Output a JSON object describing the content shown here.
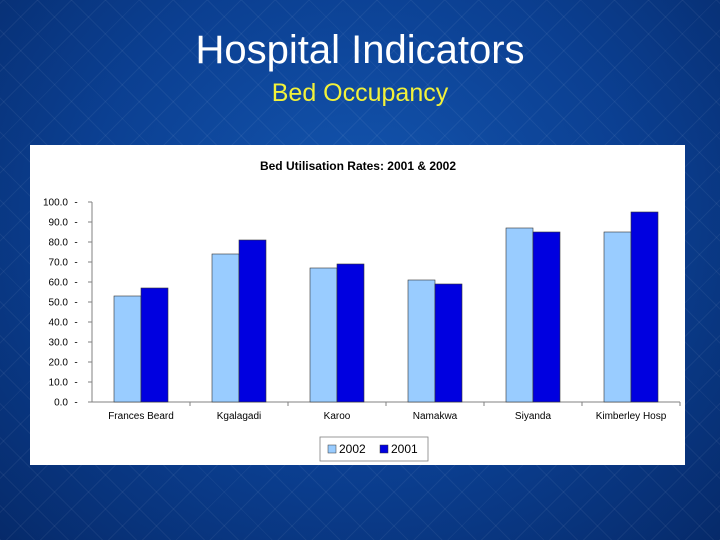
{
  "slide": {
    "title": "Hospital Indicators",
    "subtitle": "Bed Occupancy"
  },
  "colors": {
    "series_2002": "#99ccff",
    "series_2001": "#0000e0",
    "title": "#ffffff",
    "subtitle": "#f2f23a"
  },
  "chart_data": {
    "type": "bar",
    "title": "Bed Utilisation Rates: 2001 & 2002",
    "xlabel": "",
    "ylabel": "",
    "ylim": [
      0,
      100
    ],
    "yticks": [
      0,
      10,
      20,
      30,
      40,
      50,
      60,
      70,
      80,
      90,
      100
    ],
    "ytick_labels": [
      "0.0",
      "10.0",
      "20.0",
      "30.0",
      "40.0",
      "50.0",
      "60.0",
      "70.0",
      "80.0",
      "90.0",
      "100.0"
    ],
    "grid": false,
    "legend_position": "bottom",
    "categories": [
      "Frances Beard",
      "Kgalagadi",
      "Karoo",
      "Namakwa",
      "Siyanda",
      "Kimberley Hosp"
    ],
    "series": [
      {
        "name": "2002",
        "values": [
          53,
          74,
          67,
          61,
          87,
          85
        ]
      },
      {
        "name": "2001",
        "values": [
          57,
          81,
          69,
          59,
          85,
          95
        ]
      }
    ]
  }
}
